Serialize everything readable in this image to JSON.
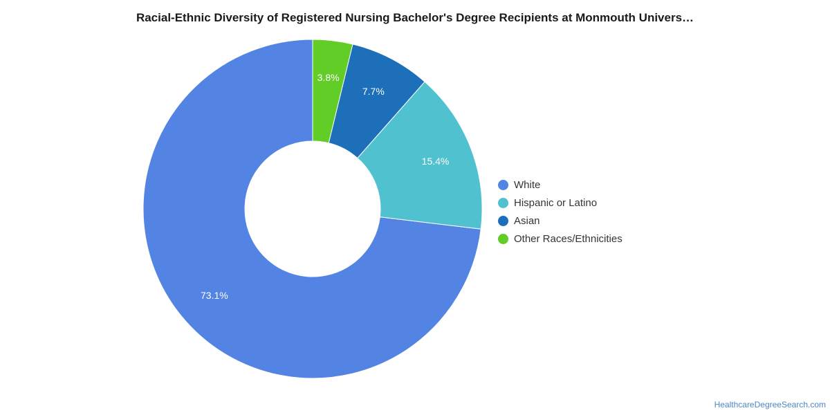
{
  "chart_data": {
    "type": "pie",
    "style": "donut",
    "title": "Racial-Ethnic Diversity of Registered Nursing Bachelor's Degree Recipients at Monmouth Univers…",
    "legend_position": "right",
    "slices": [
      {
        "name": "White",
        "value": 73.1,
        "label": "73.1%",
        "color": "#5484e3"
      },
      {
        "name": "Hispanic or Latino",
        "value": 15.4,
        "label": "15.4%",
        "color": "#4fc1cf"
      },
      {
        "name": "Asian",
        "value": 7.7,
        "label": "7.7%",
        "color": "#1d6fba"
      },
      {
        "name": "Other Races/Ethnicities",
        "value": 3.8,
        "label": "3.8%",
        "color": "#62cd27"
      }
    ]
  },
  "footer": {
    "source": "HealthcareDegreeSearch.com"
  }
}
